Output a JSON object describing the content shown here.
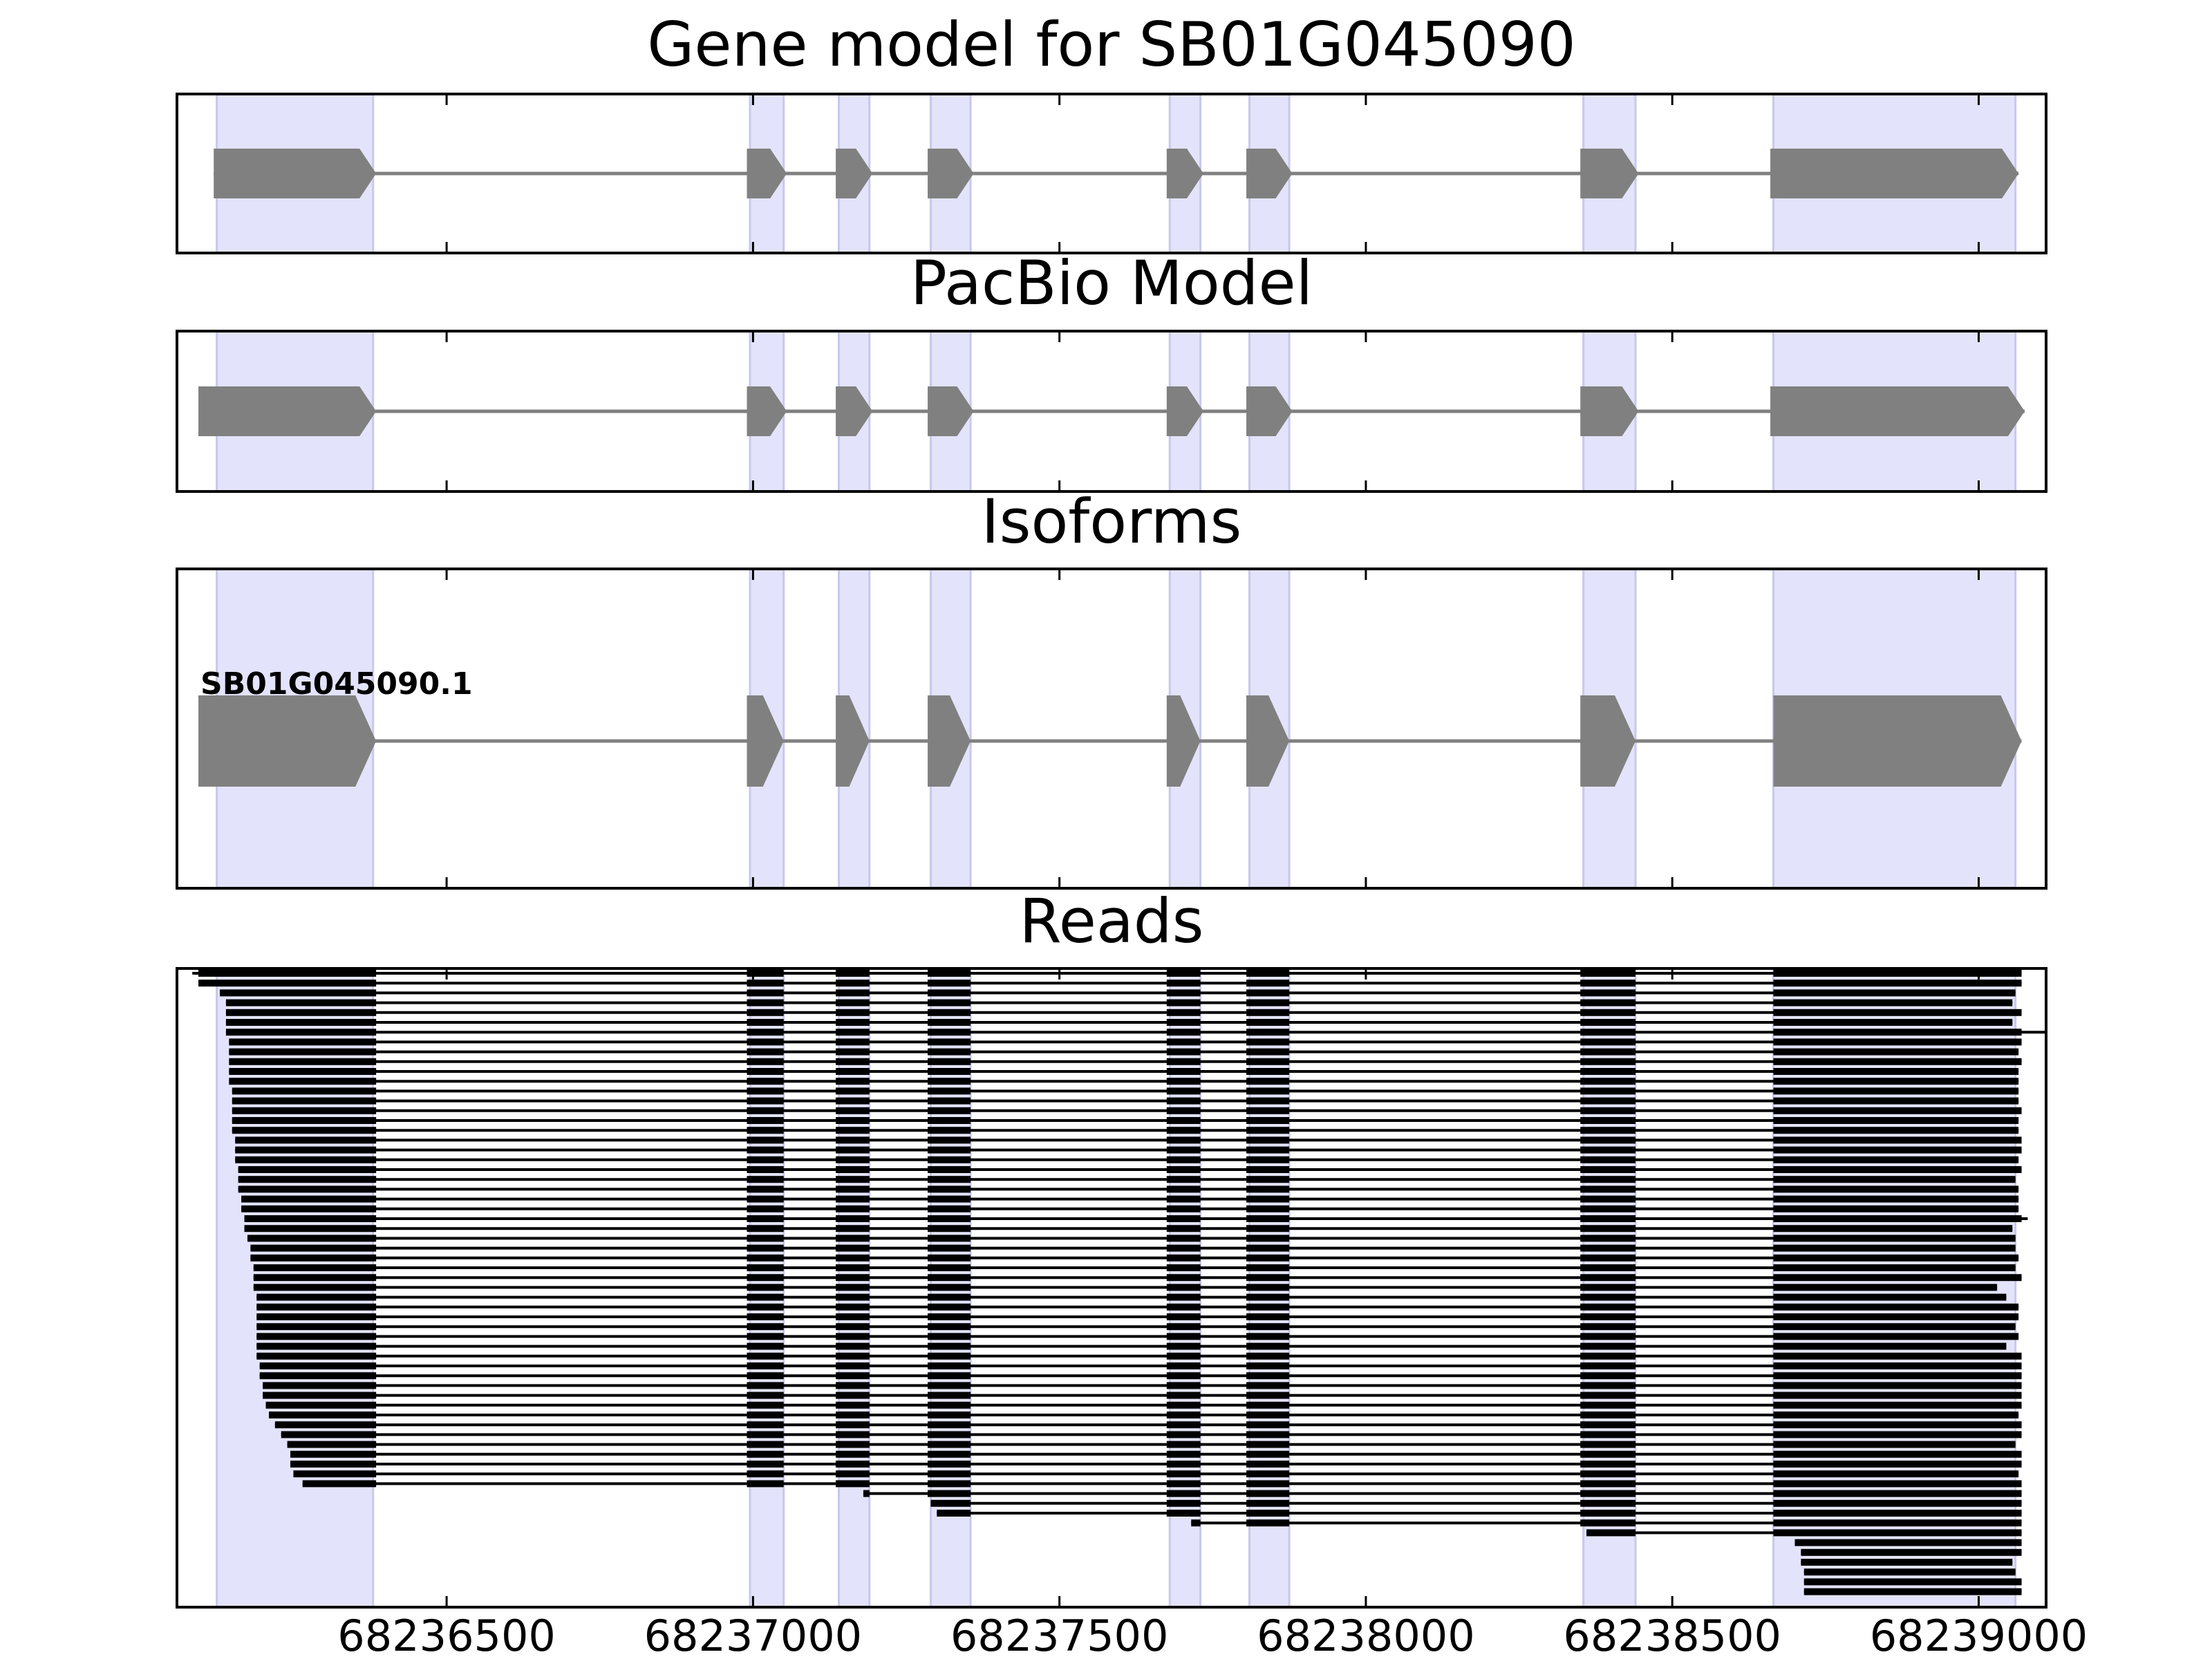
{
  "chart_data": {
    "type": "gene-structure",
    "xlim": [
      68236060,
      68239110
    ],
    "x_ticks": [
      68236500,
      68237000,
      68237500,
      68238000,
      68238500,
      68239000
    ],
    "x_tick_labels": [
      "68236500",
      "68237000",
      "68237500",
      "68238000",
      "68238500",
      "68239000"
    ],
    "exon_highlights": [
      [
        68236125,
        68236380
      ],
      [
        68236995,
        68237050
      ],
      [
        68237140,
        68237190
      ],
      [
        68237290,
        68237355
      ],
      [
        68237680,
        68237730
      ],
      [
        68237810,
        68237875
      ],
      [
        68238355,
        68238440
      ],
      [
        68238665,
        68239060
      ]
    ],
    "panels": [
      {
        "title": "Gene model for SB01G045090",
        "models": [
          {
            "label": "",
            "exons": [
              [
                68236120,
                68236385
              ],
              [
                68236990,
                68237055
              ],
              [
                68237135,
                68237195
              ],
              [
                68237285,
                68237360
              ],
              [
                68237675,
                68237735
              ],
              [
                68237805,
                68237880
              ],
              [
                68238350,
                68238445
              ],
              [
                68238660,
                68239065
              ]
            ]
          }
        ]
      },
      {
        "title": "PacBio Model",
        "models": [
          {
            "label": "",
            "exons": [
              [
                68236095,
                68236385
              ],
              [
                68236990,
                68237055
              ],
              [
                68237135,
                68237195
              ],
              [
                68237285,
                68237360
              ],
              [
                68237675,
                68237735
              ],
              [
                68237805,
                68237880
              ],
              [
                68238350,
                68238445
              ],
              [
                68238660,
                68239075
              ]
            ]
          }
        ]
      },
      {
        "title": "Isoforms",
        "models": [
          {
            "label": "SB01G045090.1",
            "exons": [
              [
                68236095,
                68236385
              ],
              [
                68236990,
                68237050
              ],
              [
                68237135,
                68237190
              ],
              [
                68237285,
                68237355
              ],
              [
                68237675,
                68237730
              ],
              [
                68237805,
                68237875
              ],
              [
                68238350,
                68238440
              ],
              [
                68238665,
                68239070
              ]
            ]
          }
        ]
      },
      {
        "title": "Reads",
        "read_count": 64,
        "read_starts": [
          68236085,
          68236095,
          68236130,
          68236140,
          68236140,
          68236140,
          68236140,
          68236145,
          68236145,
          68236145,
          68236145,
          68236145,
          68236150,
          68236150,
          68236150,
          68236150,
          68236150,
          68236155,
          68236155,
          68236155,
          68236160,
          68236160,
          68236160,
          68236165,
          68236165,
          68236170,
          68236170,
          68236175,
          68236180,
          68236180,
          68236185,
          68236185,
          68236185,
          68236190,
          68236190,
          68236190,
          68236190,
          68236190,
          68236190,
          68236190,
          68236195,
          68236195,
          68236200,
          68236200,
          68236205,
          68236210,
          68236220,
          68236230,
          68236240,
          68236245,
          68236245,
          68236250,
          68236265,
          68237180,
          68237290,
          68237300,
          68237715,
          68238360,
          68238700,
          68238710,
          68238710,
          68238715,
          68238715,
          68238715
        ],
        "read_ends": [
          68239070,
          68239070,
          68239060,
          68239055,
          68239070,
          68239055,
          68239110,
          68239070,
          68239065,
          68239070,
          68239065,
          68239065,
          68239065,
          68239065,
          68239070,
          68239065,
          68239065,
          68239070,
          68239070,
          68239065,
          68239070,
          68239060,
          68239065,
          68239065,
          68239065,
          68239080,
          68239055,
          68239060,
          68239060,
          68239065,
          68239060,
          68239070,
          68239030,
          68239045,
          68239065,
          68239065,
          68239060,
          68239065,
          68239045,
          68239070,
          68239070,
          68239070,
          68239070,
          68239070,
          68239070,
          68239065,
          68239070,
          68239070,
          68239060,
          68239070,
          68239070,
          68239065,
          68239070,
          68239070,
          68239070,
          68239070,
          68239070,
          68239070,
          68239070,
          68239070,
          68239055,
          68239060,
          68239070,
          68239070
        ]
      }
    ]
  }
}
